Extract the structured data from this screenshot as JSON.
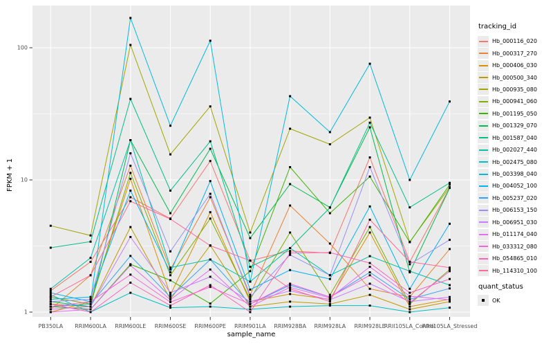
{
  "chart_data": {
    "type": "line",
    "xlabel": "sample_name",
    "ylabel": "FPKM + 1",
    "y_scale": "log10",
    "y_major_ticks": [
      1,
      10,
      100
    ],
    "y_minor_ticks": [
      3.1623,
      31.6228
    ],
    "ylim": [
      0.92,
      209
    ],
    "grid": true,
    "panel_color": "#ebebeb",
    "grid_color": "#ffffff",
    "tick_text_color": "#4d4d4d",
    "point_color": "#000000",
    "categories": [
      "PB350LA",
      "RRIM600LA",
      "RRIM600LE",
      "RRIM600SE",
      "RRIM600PE",
      "RRIM901LA",
      "RRIM928BA",
      "RRIM928LA",
      "RRIM928LE",
      "RRII105LA_Control",
      "RRII105LA_Stressed"
    ],
    "series": [
      {
        "name": "Hb_000116_020",
        "color": "#F8766D",
        "values": [
          1.45,
          2.4,
          7.4,
          5.1,
          13.9,
          2.45,
          2.9,
          2.8,
          14.8,
          2.4,
          8.7
        ]
      },
      {
        "name": "Hb_000317_270",
        "color": "#EA8331",
        "values": [
          1.05,
          1.9,
          12.8,
          2.1,
          7.4,
          1.35,
          6.4,
          3.3,
          1.5,
          1.3,
          3.0
        ]
      },
      {
        "name": "Hb_000406_030",
        "color": "#D89000",
        "values": [
          1.0,
          1.2,
          10.2,
          1.35,
          5.7,
          1.2,
          1.37,
          1.25,
          4.0,
          1.1,
          1.25
        ]
      },
      {
        "name": "Hb_000500_340",
        "color": "#C09B00",
        "values": [
          1.15,
          1.1,
          4.4,
          1.25,
          3.2,
          1.1,
          1.2,
          1.15,
          1.35,
          1.05,
          1.2
        ]
      },
      {
        "name": "Hb_000935_080",
        "color": "#A3A500",
        "values": [
          4.5,
          3.8,
          105,
          15.6,
          36,
          4.0,
          24.4,
          18.6,
          29.6,
          3.4,
          8.8
        ]
      },
      {
        "name": "Hb_000941_060",
        "color": "#7CAE00",
        "values": [
          1.3,
          1.15,
          11.3,
          1.9,
          5.1,
          1.25,
          4.0,
          1.35,
          4.4,
          1.15,
          2.1
        ]
      },
      {
        "name": "Hb_001195_050",
        "color": "#39B600",
        "values": [
          1.1,
          1.05,
          2.3,
          1.74,
          1.16,
          2.04,
          12.5,
          5.6,
          10.6,
          3.38,
          9.2
        ]
      },
      {
        "name": "Hb_001329_070",
        "color": "#00BB4E",
        "values": [
          1.2,
          1.1,
          20,
          5.6,
          17.2,
          3.63,
          9.3,
          6.2,
          25,
          2.0,
          8.7
        ]
      },
      {
        "name": "Hb_001587_040",
        "color": "#00C087",
        "values": [
          3.07,
          3.41,
          41,
          8.3,
          19.6,
          2.2,
          3.05,
          6.17,
          27.1,
          6.2,
          9.5
        ]
      },
      {
        "name": "Hb_002027_440",
        "color": "#00C1AB",
        "values": [
          1.5,
          2.57,
          20,
          2.17,
          2.5,
          1.7,
          3.05,
          1.9,
          2.65,
          2.04,
          1.6
        ]
      },
      {
        "name": "Hb_002475_080",
        "color": "#00BFC4",
        "values": [
          1.35,
          1.0,
          1.4,
          1.08,
          1.1,
          1.05,
          1.1,
          1.12,
          1.12,
          1.0,
          1.08
        ]
      },
      {
        "name": "Hb_003398_040",
        "color": "#00BAE0",
        "values": [
          1.4,
          1.2,
          168,
          25.7,
          113,
          1.7,
          43,
          23,
          75.7,
          10.0,
          39.2
        ]
      },
      {
        "name": "Hb_004052_100",
        "color": "#00B0F6",
        "values": [
          1.25,
          1.3,
          8.3,
          2.0,
          9.8,
          1.48,
          2.08,
          1.78,
          6.3,
          1.5,
          4.66
        ]
      },
      {
        "name": "Hb_005237_020",
        "color": "#35A2FF",
        "values": [
          1.1,
          1.15,
          2.66,
          1.3,
          2.5,
          1.15,
          1.6,
          1.3,
          2.0,
          1.25,
          1.51
        ]
      },
      {
        "name": "Hb_006153_150",
        "color": "#9590FF",
        "values": [
          1.2,
          1.25,
          15.9,
          2.88,
          7.85,
          1.3,
          2.71,
          1.9,
          12.5,
          2.3,
          3.52
        ]
      },
      {
        "name": "Hb_006951_030",
        "color": "#C77CFF",
        "values": [
          1.05,
          1.1,
          3.7,
          1.4,
          1.85,
          1.2,
          1.45,
          1.24,
          1.64,
          1.2,
          1.3
        ]
      },
      {
        "name": "Hb_011174_040",
        "color": "#E76BF3",
        "values": [
          1.0,
          1.05,
          2.26,
          1.24,
          2.1,
          1.1,
          1.54,
          1.28,
          2.2,
          1.32,
          1.24
        ]
      },
      {
        "name": "Hb_033312_080",
        "color": "#FA62DB",
        "values": [
          1.1,
          1.2,
          1.92,
          1.19,
          1.55,
          1.15,
          1.64,
          1.3,
          1.9,
          1.18,
          2.04
        ]
      },
      {
        "name": "Hb_054865_010",
        "color": "#FF62BC",
        "values": [
          1.15,
          1.0,
          1.67,
          1.12,
          1.6,
          1.0,
          2.8,
          2.82,
          2.35,
          1.4,
          1.78
        ]
      },
      {
        "name": "Hb_114310_100",
        "color": "#FF6A98",
        "values": [
          1.3,
          1.9,
          6.9,
          5.06,
          3.18,
          2.45,
          1.5,
          1.2,
          5.0,
          2.4,
          2.17
        ]
      }
    ],
    "legend": {
      "title": "tracking_id",
      "position": "right"
    },
    "quant_legend": {
      "title": "quant_status",
      "items": [
        {
          "label": "OK",
          "marker": "black-square"
        }
      ]
    }
  }
}
